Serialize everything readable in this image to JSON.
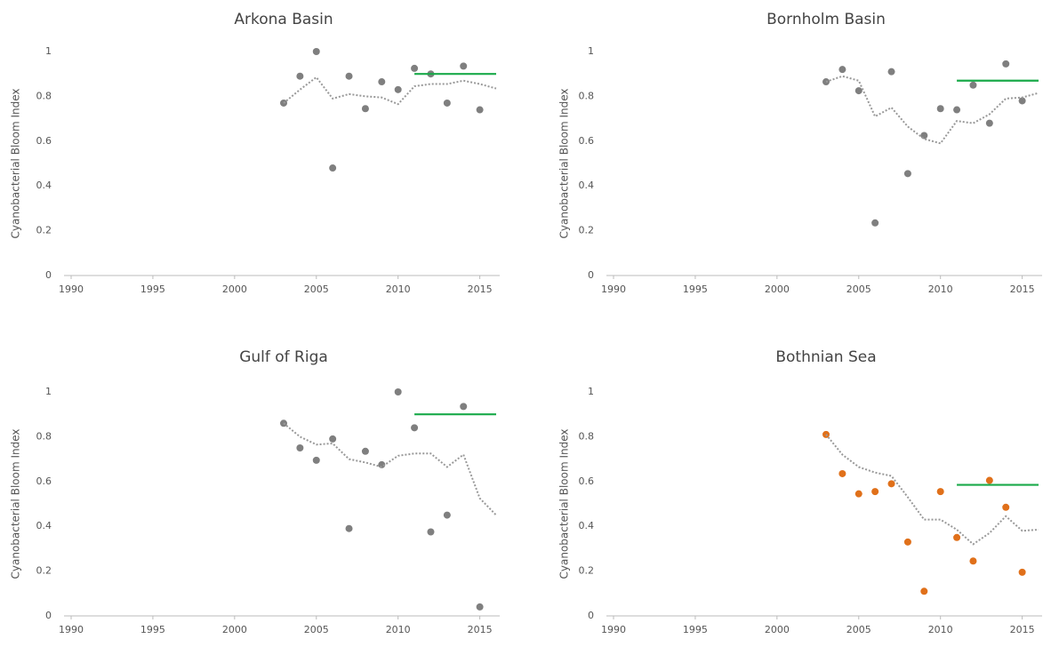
{
  "chart_data": [
    {
      "type": "scatter",
      "title": "Arkona Basin",
      "ylabel": "Cyanobacterial Bloom Index",
      "x": [
        2003,
        2004,
        2005,
        2006,
        2007,
        2008,
        2009,
        2010,
        2011,
        2012,
        2013,
        2014,
        2015,
        2016
      ],
      "series": [
        {
          "mode": "markers",
          "color": "#7f7f7f",
          "values": [
            0.77,
            0.89,
            1.0,
            0.48,
            0.89,
            0.745,
            0.865,
            0.83,
            0.925,
            0.9,
            0.77,
            0.935,
            0.74,
            null
          ]
        },
        {
          "mode": "dotted-line",
          "color": "#999999",
          "values": [
            0.77,
            0.83,
            0.885,
            0.79,
            0.81,
            0.8,
            0.795,
            0.765,
            0.845,
            0.855,
            0.855,
            0.87,
            0.855,
            0.835
          ]
        },
        {
          "mode": "line",
          "color": "#1aaa4a",
          "x": [
            2011,
            2016
          ],
          "values": [
            0.9,
            0.9
          ]
        }
      ],
      "xlim": [
        1990,
        2016
      ],
      "xticks": [
        1990,
        1995,
        2000,
        2005,
        2010,
        2015
      ],
      "ylim": [
        0,
        1
      ],
      "yticks": [
        0,
        0.2,
        0.4,
        0.6,
        0.8,
        1
      ]
    },
    {
      "type": "scatter",
      "title": "Bornholm Basin",
      "ylabel": "Cyanobacterial Bloom Index",
      "x": [
        2003,
        2004,
        2005,
        2006,
        2007,
        2008,
        2009,
        2010,
        2011,
        2012,
        2013,
        2014,
        2015,
        2016
      ],
      "series": [
        {
          "mode": "markers",
          "color": "#7f7f7f",
          "values": [
            0.865,
            0.92,
            0.825,
            0.235,
            0.91,
            0.455,
            0.625,
            0.745,
            0.74,
            0.85,
            0.68,
            0.945,
            0.78,
            null
          ]
        },
        {
          "mode": "dotted-line",
          "color": "#999999",
          "values": [
            0.865,
            0.89,
            0.87,
            0.71,
            0.75,
            0.665,
            0.61,
            0.59,
            0.69,
            0.68,
            0.72,
            0.79,
            0.795,
            0.815
          ]
        },
        {
          "mode": "line",
          "color": "#1aaa4a",
          "x": [
            2011,
            2016
          ],
          "values": [
            0.87,
            0.87
          ]
        }
      ],
      "xlim": [
        1990,
        2016
      ],
      "xticks": [
        1990,
        1995,
        2000,
        2005,
        2010,
        2015
      ],
      "ylim": [
        0,
        1
      ],
      "yticks": [
        0,
        0.2,
        0.4,
        0.6,
        0.8,
        1
      ]
    },
    {
      "type": "scatter",
      "title": "Gulf of Riga",
      "ylabel": "Cyanobacterial Bloom Index",
      "x": [
        2003,
        2004,
        2005,
        2006,
        2007,
        2008,
        2009,
        2010,
        2011,
        2012,
        2013,
        2014,
        2015,
        2016
      ],
      "series": [
        {
          "mode": "markers",
          "color": "#7f7f7f",
          "values": [
            0.86,
            0.75,
            0.695,
            0.79,
            0.39,
            0.735,
            0.675,
            1.0,
            0.84,
            0.375,
            0.45,
            0.935,
            0.04,
            null
          ]
        },
        {
          "mode": "dotted-line",
          "color": "#999999",
          "values": [
            0.86,
            0.8,
            0.765,
            0.77,
            0.7,
            0.685,
            0.665,
            0.715,
            0.725,
            0.725,
            0.665,
            0.72,
            0.525,
            0.45
          ]
        },
        {
          "mode": "line",
          "color": "#1aaa4a",
          "x": [
            2011,
            2016
          ],
          "values": [
            0.9,
            0.9
          ]
        }
      ],
      "xlim": [
        1990,
        2016
      ],
      "xticks": [
        1990,
        1995,
        2000,
        2005,
        2010,
        2015
      ],
      "ylim": [
        0,
        1
      ],
      "yticks": [
        0,
        0.2,
        0.4,
        0.6,
        0.8,
        1
      ]
    },
    {
      "type": "scatter",
      "title": "Bothnian Sea",
      "ylabel": "Cyanobacterial Bloom Index",
      "x": [
        2003,
        2004,
        2005,
        2006,
        2007,
        2008,
        2009,
        2010,
        2011,
        2012,
        2013,
        2014,
        2015,
        2016
      ],
      "series": [
        {
          "mode": "markers",
          "color": "#e0701a",
          "values": [
            0.81,
            0.635,
            0.545,
            0.555,
            0.59,
            0.33,
            0.11,
            0.555,
            0.35,
            0.245,
            0.605,
            0.485,
            0.195,
            null
          ]
        },
        {
          "mode": "dotted-line",
          "color": "#999999",
          "values": [
            0.81,
            0.72,
            0.665,
            0.64,
            0.625,
            0.53,
            0.43,
            0.43,
            0.385,
            0.32,
            0.37,
            0.445,
            0.38,
            0.385
          ]
        },
        {
          "mode": "line",
          "color": "#1aaa4a",
          "x": [
            2011,
            2016
          ],
          "values": [
            0.585,
            0.585
          ]
        }
      ],
      "xlim": [
        1990,
        2016
      ],
      "xticks": [
        1990,
        1995,
        2000,
        2005,
        2010,
        2015
      ],
      "ylim": [
        0,
        1
      ],
      "yticks": [
        0,
        0.2,
        0.4,
        0.6,
        0.8,
        1
      ]
    }
  ]
}
